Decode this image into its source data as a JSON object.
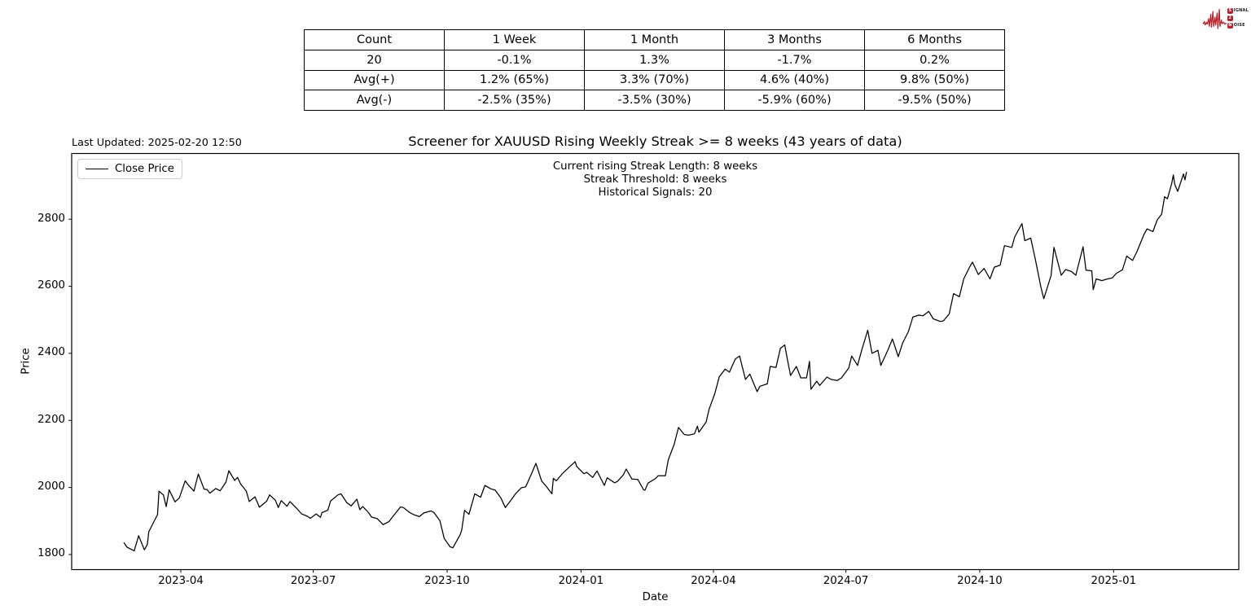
{
  "header": {
    "last_updated": "Last Updated: 2025-02-20 12:50"
  },
  "logo": {
    "color": "#b5202a",
    "rows": [
      {
        "badge": "S",
        "text": "IGNAL"
      },
      {
        "badge": "2",
        "text": ""
      },
      {
        "badge": "N",
        "text": "OISE"
      }
    ]
  },
  "stats_table": {
    "columns": [
      "Count",
      "1 Week",
      "1 Month",
      "3 Months",
      "6 Months"
    ],
    "rows": [
      [
        "20",
        "-0.1%",
        "1.3%",
        "-1.7%",
        "0.2%"
      ],
      [
        "Avg(+)",
        "1.2% (65%)",
        "3.3% (70%)",
        "4.6% (40%)",
        "9.8% (50%)"
      ],
      [
        "Avg(-)",
        "-2.5% (35%)",
        "-3.5% (30%)",
        "-5.9% (60%)",
        "-9.5% (50%)"
      ]
    ]
  },
  "chart_data": {
    "type": "line",
    "title": "Screener for XAUUSD Rising Weekly Streak >= 8 weeks (43 years of data)",
    "xlabel": "Date",
    "ylabel": "Price",
    "legend": [
      "Close Price"
    ],
    "legend_position": "upper left",
    "annotations": [
      "Current rising Streak Length: 8 weeks",
      "Streak Threshold: 8 weeks",
      "Historical Signals: 20"
    ],
    "line_color": "#000000",
    "grid": false,
    "xlim": [
      "2023-01-16",
      "2025-03-28"
    ],
    "ylim": [
      1755,
      2996
    ],
    "y_ticks": [
      1800,
      2000,
      2200,
      2400,
      2600,
      2800
    ],
    "x_ticks": [
      {
        "label": "2023-04",
        "date": "2023-04-01"
      },
      {
        "label": "2023-07",
        "date": "2023-07-01"
      },
      {
        "label": "2023-10",
        "date": "2023-10-01"
      },
      {
        "label": "2024-01",
        "date": "2024-01-01"
      },
      {
        "label": "2024-04",
        "date": "2024-04-01"
      },
      {
        "label": "2024-07",
        "date": "2024-07-01"
      },
      {
        "label": "2024-10",
        "date": "2024-10-01"
      },
      {
        "label": "2025-01",
        "date": "2025-01-01"
      }
    ],
    "series": [
      {
        "name": "Close Price",
        "points": [
          [
            "2023-02-21",
            1835
          ],
          [
            "2023-02-23",
            1822
          ],
          [
            "2023-02-28",
            1811
          ],
          [
            "2023-03-03",
            1856
          ],
          [
            "2023-03-07",
            1814
          ],
          [
            "2023-03-09",
            1830
          ],
          [
            "2023-03-10",
            1868
          ],
          [
            "2023-03-14",
            1902
          ],
          [
            "2023-03-16",
            1919
          ],
          [
            "2023-03-17",
            1989
          ],
          [
            "2023-03-20",
            1978
          ],
          [
            "2023-03-22",
            1943
          ],
          [
            "2023-03-24",
            1993
          ],
          [
            "2023-03-28",
            1957
          ],
          [
            "2023-03-31",
            1969
          ],
          [
            "2023-04-04",
            2020
          ],
          [
            "2023-04-06",
            2008
          ],
          [
            "2023-04-10",
            1989
          ],
          [
            "2023-04-13",
            2040
          ],
          [
            "2023-04-17",
            1995
          ],
          [
            "2023-04-19",
            1994
          ],
          [
            "2023-04-21",
            1983
          ],
          [
            "2023-04-25",
            1997
          ],
          [
            "2023-04-28",
            1990
          ],
          [
            "2023-05-02",
            2016
          ],
          [
            "2023-05-04",
            2050
          ],
          [
            "2023-05-08",
            2021
          ],
          [
            "2023-05-10",
            2030
          ],
          [
            "2023-05-12",
            2011
          ],
          [
            "2023-05-16",
            1989
          ],
          [
            "2023-05-18",
            1958
          ],
          [
            "2023-05-22",
            1972
          ],
          [
            "2023-05-25",
            1941
          ],
          [
            "2023-05-30",
            1959
          ],
          [
            "2023-06-01",
            1978
          ],
          [
            "2023-06-05",
            1962
          ],
          [
            "2023-06-07",
            1940
          ],
          [
            "2023-06-09",
            1961
          ],
          [
            "2023-06-13",
            1944
          ],
          [
            "2023-06-15",
            1958
          ],
          [
            "2023-06-20",
            1936
          ],
          [
            "2023-06-23",
            1921
          ],
          [
            "2023-06-27",
            1914
          ],
          [
            "2023-06-29",
            1908
          ],
          [
            "2023-07-03",
            1921
          ],
          [
            "2023-07-06",
            1911
          ],
          [
            "2023-07-07",
            1925
          ],
          [
            "2023-07-11",
            1932
          ],
          [
            "2023-07-13",
            1960
          ],
          [
            "2023-07-18",
            1978
          ],
          [
            "2023-07-20",
            1981
          ],
          [
            "2023-07-24",
            1955
          ],
          [
            "2023-07-27",
            1945
          ],
          [
            "2023-07-31",
            1965
          ],
          [
            "2023-08-02",
            1934
          ],
          [
            "2023-08-04",
            1943
          ],
          [
            "2023-08-08",
            1925
          ],
          [
            "2023-08-10",
            1912
          ],
          [
            "2023-08-14",
            1907
          ],
          [
            "2023-08-18",
            1889
          ],
          [
            "2023-08-22",
            1898
          ],
          [
            "2023-08-25",
            1915
          ],
          [
            "2023-08-30",
            1942
          ],
          [
            "2023-09-01",
            1940
          ],
          [
            "2023-09-05",
            1926
          ],
          [
            "2023-09-08",
            1919
          ],
          [
            "2023-09-12",
            1913
          ],
          [
            "2023-09-15",
            1924
          ],
          [
            "2023-09-20",
            1930
          ],
          [
            "2023-09-22",
            1925
          ],
          [
            "2023-09-26",
            1901
          ],
          [
            "2023-09-29",
            1848
          ],
          [
            "2023-10-03",
            1823
          ],
          [
            "2023-10-05",
            1820
          ],
          [
            "2023-10-10",
            1860
          ],
          [
            "2023-10-11",
            1873
          ],
          [
            "2023-10-13",
            1932
          ],
          [
            "2023-10-16",
            1920
          ],
          [
            "2023-10-20",
            1981
          ],
          [
            "2023-10-24",
            1971
          ],
          [
            "2023-10-27",
            2006
          ],
          [
            "2023-10-31",
            1996
          ],
          [
            "2023-11-03",
            1992
          ],
          [
            "2023-11-07",
            1968
          ],
          [
            "2023-11-10",
            1940
          ],
          [
            "2023-11-14",
            1963
          ],
          [
            "2023-11-17",
            1981
          ],
          [
            "2023-11-21",
            1999
          ],
          [
            "2023-11-24",
            2002
          ],
          [
            "2023-11-28",
            2041
          ],
          [
            "2023-12-01",
            2072
          ],
          [
            "2023-12-05",
            2019
          ],
          [
            "2023-12-08",
            2004
          ],
          [
            "2023-12-12",
            1981
          ],
          [
            "2023-12-13",
            2027
          ],
          [
            "2023-12-15",
            2020
          ],
          [
            "2023-12-19",
            2040
          ],
          [
            "2023-12-22",
            2053
          ],
          [
            "2023-12-28",
            2077
          ],
          [
            "2023-12-29",
            2063
          ],
          [
            "2024-01-03",
            2041
          ],
          [
            "2024-01-05",
            2045
          ],
          [
            "2024-01-09",
            2030
          ],
          [
            "2024-01-12",
            2049
          ],
          [
            "2024-01-17",
            2006
          ],
          [
            "2024-01-19",
            2029
          ],
          [
            "2024-01-24",
            2014
          ],
          [
            "2024-01-26",
            2018
          ],
          [
            "2024-01-30",
            2037
          ],
          [
            "2024-02-01",
            2055
          ],
          [
            "2024-02-05",
            2025
          ],
          [
            "2024-02-09",
            2024
          ],
          [
            "2024-02-13",
            1993
          ],
          [
            "2024-02-14",
            1992
          ],
          [
            "2024-02-16",
            2013
          ],
          [
            "2024-02-21",
            2026
          ],
          [
            "2024-02-23",
            2035
          ],
          [
            "2024-02-28",
            2035
          ],
          [
            "2024-03-01",
            2083
          ],
          [
            "2024-03-05",
            2128
          ],
          [
            "2024-03-08",
            2179
          ],
          [
            "2024-03-12",
            2158
          ],
          [
            "2024-03-15",
            2156
          ],
          [
            "2024-03-19",
            2160
          ],
          [
            "2024-03-21",
            2183
          ],
          [
            "2024-03-22",
            2165
          ],
          [
            "2024-03-27",
            2195
          ],
          [
            "2024-03-29",
            2233
          ],
          [
            "2024-04-02",
            2281
          ],
          [
            "2024-04-05",
            2330
          ],
          [
            "2024-04-09",
            2353
          ],
          [
            "2024-04-12",
            2344
          ],
          [
            "2024-04-16",
            2383
          ],
          [
            "2024-04-19",
            2392
          ],
          [
            "2024-04-23",
            2322
          ],
          [
            "2024-04-26",
            2338
          ],
          [
            "2024-05-01",
            2286
          ],
          [
            "2024-05-03",
            2302
          ],
          [
            "2024-05-08",
            2309
          ],
          [
            "2024-05-10",
            2361
          ],
          [
            "2024-05-14",
            2358
          ],
          [
            "2024-05-17",
            2415
          ],
          [
            "2024-05-20",
            2425
          ],
          [
            "2024-05-22",
            2378
          ],
          [
            "2024-05-24",
            2334
          ],
          [
            "2024-05-28",
            2361
          ],
          [
            "2024-05-31",
            2327
          ],
          [
            "2024-06-04",
            2327
          ],
          [
            "2024-06-06",
            2376
          ],
          [
            "2024-06-07",
            2293
          ],
          [
            "2024-06-11",
            2317
          ],
          [
            "2024-06-13",
            2304
          ],
          [
            "2024-06-18",
            2329
          ],
          [
            "2024-06-21",
            2322
          ],
          [
            "2024-06-25",
            2319
          ],
          [
            "2024-06-28",
            2327
          ],
          [
            "2024-07-03",
            2356
          ],
          [
            "2024-07-05",
            2392
          ],
          [
            "2024-07-09",
            2364
          ],
          [
            "2024-07-12",
            2411
          ],
          [
            "2024-07-16",
            2469
          ],
          [
            "2024-07-19",
            2400
          ],
          [
            "2024-07-23",
            2409
          ],
          [
            "2024-07-25",
            2364
          ],
          [
            "2024-07-30",
            2411
          ],
          [
            "2024-08-02",
            2443
          ],
          [
            "2024-08-06",
            2390
          ],
          [
            "2024-08-09",
            2431
          ],
          [
            "2024-08-13",
            2465
          ],
          [
            "2024-08-16",
            2508
          ],
          [
            "2024-08-20",
            2514
          ],
          [
            "2024-08-23",
            2512
          ],
          [
            "2024-08-27",
            2525
          ],
          [
            "2024-08-30",
            2503
          ],
          [
            "2024-09-04",
            2495
          ],
          [
            "2024-09-06",
            2497
          ],
          [
            "2024-09-10",
            2517
          ],
          [
            "2024-09-13",
            2578
          ],
          [
            "2024-09-17",
            2569
          ],
          [
            "2024-09-20",
            2622
          ],
          [
            "2024-09-24",
            2657
          ],
          [
            "2024-09-26",
            2672
          ],
          [
            "2024-09-30",
            2635
          ],
          [
            "2024-10-04",
            2653
          ],
          [
            "2024-10-08",
            2622
          ],
          [
            "2024-10-11",
            2657
          ],
          [
            "2024-10-15",
            2663
          ],
          [
            "2024-10-18",
            2721
          ],
          [
            "2024-10-23",
            2716
          ],
          [
            "2024-10-25",
            2747
          ],
          [
            "2024-10-30",
            2787
          ],
          [
            "2024-11-01",
            2736
          ],
          [
            "2024-11-05",
            2744
          ],
          [
            "2024-11-08",
            2684
          ],
          [
            "2024-11-12",
            2598
          ],
          [
            "2024-11-14",
            2563
          ],
          [
            "2024-11-19",
            2632
          ],
          [
            "2024-11-21",
            2716
          ],
          [
            "2024-11-26",
            2633
          ],
          [
            "2024-11-29",
            2650
          ],
          [
            "2024-12-03",
            2644
          ],
          [
            "2024-12-06",
            2633
          ],
          [
            "2024-12-11",
            2718
          ],
          [
            "2024-12-13",
            2648
          ],
          [
            "2024-12-17",
            2646
          ],
          [
            "2024-12-18",
            2590
          ],
          [
            "2024-12-20",
            2622
          ],
          [
            "2024-12-24",
            2617
          ],
          [
            "2024-12-27",
            2621
          ],
          [
            "2024-12-31",
            2625
          ],
          [
            "2025-01-03",
            2639
          ],
          [
            "2025-01-07",
            2649
          ],
          [
            "2025-01-10",
            2690
          ],
          [
            "2025-01-14",
            2677
          ],
          [
            "2025-01-17",
            2703
          ],
          [
            "2025-01-22",
            2756
          ],
          [
            "2025-01-24",
            2771
          ],
          [
            "2025-01-28",
            2763
          ],
          [
            "2025-01-31",
            2798
          ],
          [
            "2025-02-03",
            2815
          ],
          [
            "2025-02-05",
            2867
          ],
          [
            "2025-02-07",
            2861
          ],
          [
            "2025-02-10",
            2908
          ],
          [
            "2025-02-11",
            2932
          ],
          [
            "2025-02-12",
            2904
          ],
          [
            "2025-02-14",
            2883
          ],
          [
            "2025-02-18",
            2935
          ],
          [
            "2025-02-19",
            2917
          ],
          [
            "2025-02-20",
            2940
          ]
        ]
      }
    ]
  }
}
